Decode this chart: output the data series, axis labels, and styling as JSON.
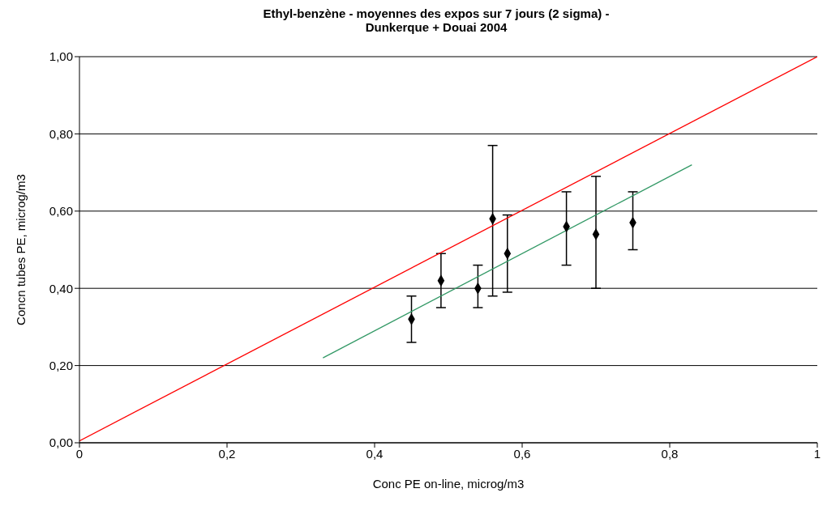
{
  "chart_data": {
    "type": "scatter",
    "title": "Ethyl-benzène - moyennes des expos sur 7 jours (2 sigma) -\nDunkerque + Douai 2004",
    "xlabel": "Conc PE on-line, microg/m3",
    "ylabel": "Concn tubes PE, microg/m3",
    "xlim": [
      0,
      1
    ],
    "xticks": [
      0,
      {
        "value": 0.2,
        "label": "0,2"
      },
      {
        "value": 0.4,
        "label": "0,4"
      },
      {
        "value": 0.6,
        "label": "0,6"
      },
      {
        "value": 0.8,
        "label": "0,8"
      },
      1
    ],
    "ylim": [
      0,
      1
    ],
    "yticks": [
      {
        "value": 0,
        "label": "0,00"
      },
      {
        "value": 0.2,
        "label": "0,20"
      },
      {
        "value": 0.4,
        "label": "0,40"
      },
      {
        "value": 0.6,
        "label": "0,60"
      },
      {
        "value": 0.8,
        "label": "0,80"
      },
      {
        "value": 1,
        "label": "1,00"
      }
    ],
    "grid": "y",
    "series": [
      {
        "color": "#000000",
        "marker": "diamond",
        "x": [
          0.45,
          0.49,
          0.54,
          0.56,
          0.58,
          0.66,
          0.7,
          0.75
        ],
        "values": [
          0.32,
          0.42,
          0.4,
          0.58,
          0.49,
          0.56,
          0.54,
          0.57
        ],
        "errors": [
          [
            0.26,
            0.38
          ],
          [
            0.35,
            0.49
          ],
          [
            0.35,
            0.46
          ],
          [
            0.38,
            0.77
          ],
          [
            0.39,
            0.59
          ],
          [
            0.46,
            0.65
          ],
          [
            0.4,
            0.69
          ],
          [
            0.5,
            0.65
          ]
        ]
      },
      {
        "type": "line",
        "color": "#ff0000",
        "marker": "none",
        "x": [
          0,
          1
        ],
        "values": [
          0.005,
          1
        ]
      },
      {
        "type": "line",
        "color": "#339966",
        "marker": "none",
        "x": [
          0.33,
          0.83
        ],
        "values": [
          0.22,
          0.72
        ]
      }
    ]
  }
}
